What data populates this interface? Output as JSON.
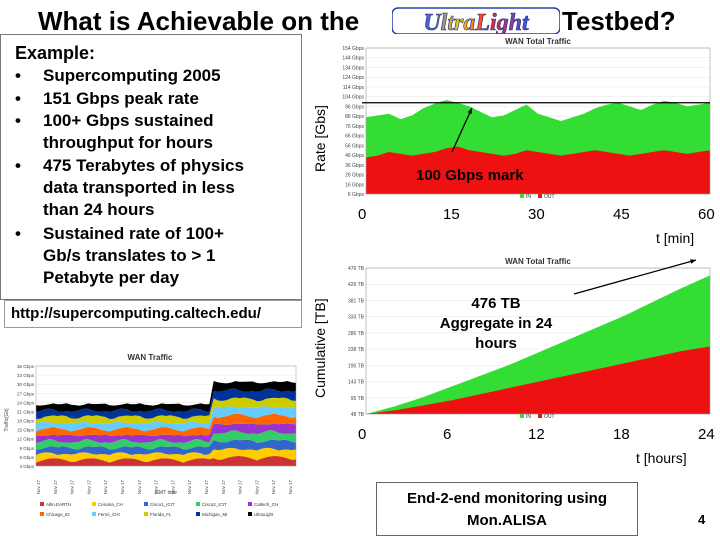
{
  "title": {
    "left": "What is Achievable on the",
    "right": "Testbed?",
    "logo_text": "UltraLight"
  },
  "example": {
    "heading": "Example:",
    "bullets": [
      [
        "Supercomputing 2005"
      ],
      [
        "151 Gbps peak rate"
      ],
      [
        "100+ Gbps sustained",
        "throughput for hours"
      ],
      [
        "475 Terabytes of physics",
        "data transported in less",
        "than 24 hours"
      ],
      [
        "Sustained rate of 100+",
        "Gb/s translates to > 1",
        "Petabyte per day"
      ]
    ]
  },
  "url": "http://supercomputing.caltech.edu/",
  "page_number": "4",
  "monitoring_note": [
    "End-2-end monitoring using",
    "Mon.ALISA"
  ],
  "colors": {
    "green": "#33dd33",
    "red": "#ee1111",
    "black": "#000000"
  },
  "chart_data": [
    {
      "type": "area",
      "title": "WAN Total Traffic",
      "ylabel": "Rate [Gbs]",
      "xlabel": "t [min]",
      "x_ticks": [
        "0",
        "15",
        "30",
        "45",
        "60"
      ],
      "y_ticks": [
        "154 Gbps",
        "144 Gbps",
        "134 Gbps",
        "124 Gbps",
        "114 Gbps",
        "104 Gbps",
        "96 Gbps",
        "86 Gbps",
        "76 Gbps",
        "66 Gbps",
        "56 Gbps",
        "46 Gbps",
        "36 Gbps",
        "26 Gbps",
        "16 Gbps",
        "6 Gbps"
      ],
      "reference_line": 100,
      "annotation": "100 Gbps mark",
      "ylim": [
        0,
        160
      ],
      "x": [
        0,
        2,
        4,
        6,
        8,
        10,
        12,
        14,
        16,
        18,
        20,
        22,
        24,
        26,
        28,
        30,
        32,
        34,
        36,
        38,
        40,
        42,
        44,
        46,
        48,
        50,
        52,
        54,
        56,
        58,
        60
      ],
      "series": [
        {
          "name": "IN",
          "values": [
            84,
            86,
            88,
            82,
            86,
            94,
            99,
            103,
            100,
            96,
            90,
            84,
            86,
            92,
            98,
            88,
            84,
            80,
            84,
            88,
            94,
            98,
            100,
            96,
            92,
            98,
            102,
            100,
            96,
            98,
            100
          ]
        },
        {
          "name": "OUT",
          "values": [
            40,
            42,
            46,
            44,
            42,
            44,
            46,
            50,
            52,
            48,
            46,
            44,
            42,
            44,
            48,
            46,
            44,
            42,
            44,
            46,
            48,
            46,
            44,
            42,
            44,
            46,
            48,
            46,
            44,
            46,
            48
          ]
        }
      ],
      "legend": [
        "IN",
        "OUT"
      ]
    },
    {
      "type": "area",
      "title": "WAN Total Traffic",
      "ylabel": "Cumulative [TB]",
      "xlabel": "t [hours]",
      "x_ticks": [
        "0",
        "6",
        "12",
        "18",
        "24"
      ],
      "y_ticks": [
        "476 TB",
        "429 TB",
        "381 TB",
        "333 TB",
        "286 TB",
        "238 TB",
        "190 TB",
        "143 TB",
        "95 TB",
        "48 TB"
      ],
      "annotation": [
        "476 TB",
        "Aggregate in 24",
        "hours"
      ],
      "ylim": [
        0,
        476
      ],
      "x": [
        0,
        2,
        4,
        6,
        8,
        10,
        12,
        14,
        16,
        18,
        20,
        22,
        24
      ],
      "series": [
        {
          "name": "IN",
          "values": [
            0,
            25,
            55,
            90,
            125,
            160,
            200,
            240,
            280,
            320,
            365,
            410,
            452
          ]
        },
        {
          "name": "OUT",
          "values": [
            0,
            12,
            28,
            45,
            65,
            85,
            105,
            125,
            145,
            165,
            185,
            205,
            220
          ]
        }
      ],
      "legend": [
        "IN",
        "OUT"
      ]
    },
    {
      "type": "area",
      "title": "WAN Traffic",
      "ylabel": "Traffic[Gb]",
      "xlabel": "GMT time",
      "stacked": true,
      "y_ticks": [
        "36 Gbps",
        "33 Gbps",
        "30 Gbps",
        "27 Gbps",
        "24 Gbps",
        "21 Gbps",
        "18 Gbps",
        "15 Gbps",
        "12 Gbps",
        "9 Gbps",
        "6 Gbps",
        "3 Gbps"
      ],
      "x_ticks": [
        "Nov 17",
        "Nov 17",
        "Nov 17",
        "Nov 17",
        "Nov 17",
        "Nov 17",
        "Nov 17",
        "Nov 17",
        "Nov 17",
        "Nov 17",
        "Nov 17",
        "Nov 17",
        "Nov 17",
        "Nov 17",
        "Nov 17",
        "Nov 17"
      ],
      "layers": [
        {
          "name": "AllIn.EARTH",
          "color": "#cc3333"
        },
        {
          "name": "Cenaria_CH",
          "color": "#ffcc00"
        },
        {
          "name": "Cisco1_ICIT",
          "color": "#3366cc"
        },
        {
          "name": "Cisco2_ICIT",
          "color": "#33cc66"
        },
        {
          "name": "Caltech_CH",
          "color": "#9933cc"
        },
        {
          "name": "Chicago_ID",
          "color": "#ff6600"
        },
        {
          "name": "Fermi_CHI",
          "color": "#66ccff"
        },
        {
          "name": "Florida_FL",
          "color": "#cccc00"
        },
        {
          "name": "Michigan_MI",
          "color": "#003399"
        },
        {
          "name": "UltraLight",
          "color": "#000000"
        }
      ]
    }
  ]
}
